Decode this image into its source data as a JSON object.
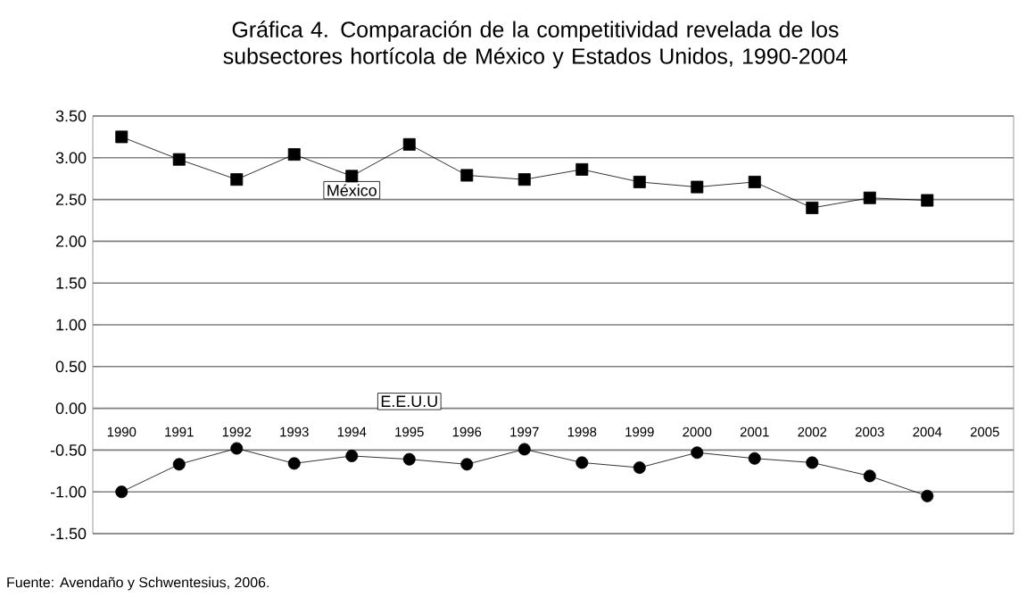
{
  "chart_data": {
    "type": "line",
    "title": "Gráfica 4. Comparación de la competitividad revelada de los subsectores hortícola de México y Estados Unidos, 1990-2004",
    "categories": [
      "1990",
      "1991",
      "1992",
      "1993",
      "1994",
      "1995",
      "1996",
      "1997",
      "1998",
      "1999",
      "2000",
      "2001",
      "2002",
      "2003",
      "2004",
      "2005"
    ],
    "series": [
      {
        "name": "México",
        "color": "#000000",
        "marker": "square",
        "values": [
          3.25,
          2.98,
          2.74,
          3.04,
          2.78,
          3.16,
          2.79,
          2.74,
          2.86,
          2.71,
          2.65,
          2.71,
          2.4,
          2.52,
          2.49,
          null
        ]
      },
      {
        "name": "E.E.U.U",
        "color": "#000000",
        "marker": "circle",
        "values": [
          -1.0,
          -0.67,
          -0.48,
          -0.66,
          -0.57,
          -0.61,
          -0.67,
          -0.49,
          -0.65,
          -0.71,
          -0.53,
          -0.6,
          -0.65,
          -0.81,
          -1.05,
          null
        ]
      }
    ],
    "ylim": [
      -1.5,
      3.5
    ],
    "yticks": [
      {
        "value": -1.5,
        "label": "-1.50"
      },
      {
        "value": -1,
        "label": "-1.00"
      },
      {
        "value": -0.5,
        "label": "-0.50"
      },
      {
        "value": 0,
        "label": "0.00"
      },
      {
        "value": 0.5,
        "label": "0.50"
      },
      {
        "value": 1,
        "label": "1.00"
      },
      {
        "value": 1.5,
        "label": "1.50"
      },
      {
        "value": 2,
        "label": "2.00"
      },
      {
        "value": 2.5,
        "label": "2.50"
      },
      {
        "value": 3,
        "label": "3.00"
      },
      {
        "value": 3.5,
        "label": "3.50"
      }
    ],
    "grid": "y",
    "line_style": "solid",
    "annotations": [
      "Fuente: Avendaño y Schwentesius, 2006."
    ]
  }
}
